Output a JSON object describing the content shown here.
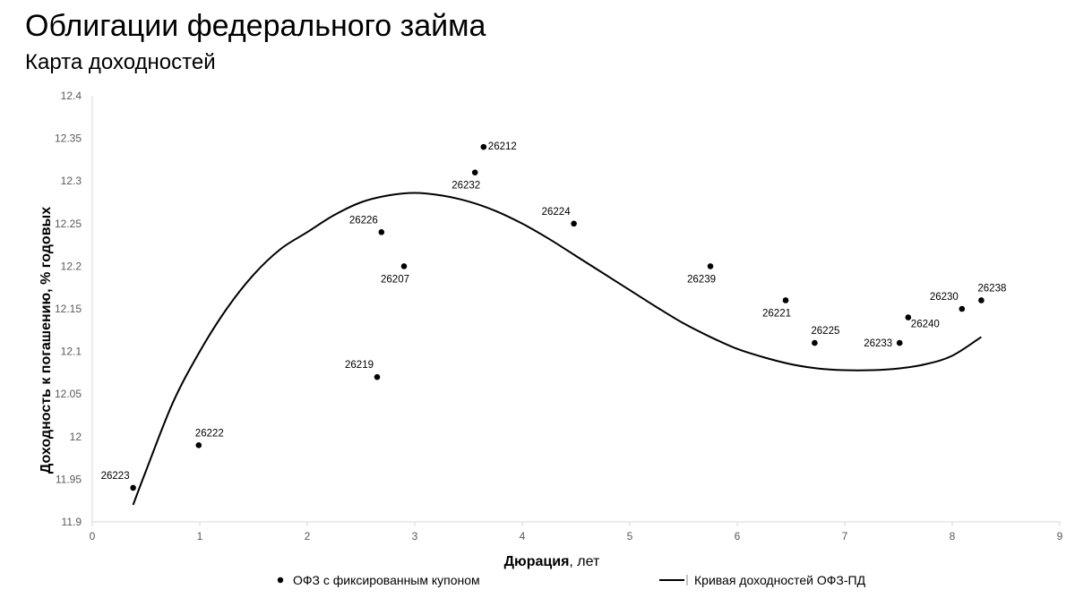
{
  "header": {
    "title": "Облигации федерального займа",
    "subtitle": "Карта доходностей"
  },
  "chart_data": {
    "type": "scatter",
    "xlabel_bold": "Дюрация",
    "xlabel_rest": ", лет",
    "ylabel": "Доходность к погашению, % годовых",
    "xlim": [
      0,
      9
    ],
    "ylim": [
      11.9,
      12.4
    ],
    "xticks": [
      "0",
      "1",
      "2",
      "3",
      "4",
      "5",
      "6",
      "7",
      "8",
      "9"
    ],
    "yticks": [
      "11.9",
      "11.95",
      "12",
      "12.05",
      "12.1",
      "12.15",
      "12.2",
      "12.25",
      "12.3",
      "12.35",
      "12.4"
    ],
    "grid": false,
    "legend_position": "bottom",
    "series": [
      {
        "name": "ОФЗ с фиксированным купоном",
        "kind": "scatter",
        "color": "#000000",
        "points": [
          {
            "label": "26223",
            "x": 0.38,
            "y": 11.94,
            "label_pos": "above-left"
          },
          {
            "label": "26222",
            "x": 0.99,
            "y": 11.99,
            "label_pos": "above-right"
          },
          {
            "label": "26219",
            "x": 2.65,
            "y": 12.07,
            "label_pos": "above-left"
          },
          {
            "label": "26226",
            "x": 2.69,
            "y": 12.24,
            "label_pos": "above-left"
          },
          {
            "label": "26207",
            "x": 2.9,
            "y": 12.2,
            "label_pos": "below-left"
          },
          {
            "label": "26232",
            "x": 3.56,
            "y": 12.31,
            "label_pos": "below-left"
          },
          {
            "label": "26212",
            "x": 3.64,
            "y": 12.34,
            "label_pos": "right"
          },
          {
            "label": "26224",
            "x": 4.48,
            "y": 12.25,
            "label_pos": "above-left"
          },
          {
            "label": "26239",
            "x": 5.75,
            "y": 12.2,
            "label_pos": "below-left"
          },
          {
            "label": "26221",
            "x": 6.45,
            "y": 12.16,
            "label_pos": "below-left"
          },
          {
            "label": "26225",
            "x": 6.72,
            "y": 12.11,
            "label_pos": "above-right"
          },
          {
            "label": "26233",
            "x": 7.51,
            "y": 12.11,
            "label_pos": "left"
          },
          {
            "label": "26240",
            "x": 7.59,
            "y": 12.14,
            "label_pos": "below-right"
          },
          {
            "label": "26230",
            "x": 8.09,
            "y": 12.15,
            "label_pos": "above-left"
          },
          {
            "label": "26238",
            "x": 8.27,
            "y": 12.16,
            "label_pos": "above-right"
          }
        ]
      },
      {
        "name": "Кривая доходностей ОФЗ-ПД",
        "kind": "line",
        "color": "#000000",
        "x": [
          0.38,
          0.5,
          0.75,
          1.0,
          1.25,
          1.5,
          1.75,
          2.0,
          2.25,
          2.5,
          2.75,
          3.0,
          3.25,
          3.5,
          3.75,
          4.0,
          4.25,
          4.5,
          4.75,
          5.0,
          5.25,
          5.5,
          5.75,
          6.0,
          6.25,
          6.5,
          6.75,
          7.0,
          7.25,
          7.5,
          7.75,
          8.0,
          8.27
        ],
        "y": [
          11.92,
          11.96,
          12.04,
          12.1,
          12.15,
          12.19,
          12.22,
          12.24,
          12.26,
          12.275,
          12.283,
          12.286,
          12.283,
          12.276,
          12.265,
          12.25,
          12.232,
          12.212,
          12.192,
          12.172,
          12.152,
          12.133,
          12.117,
          12.103,
          12.093,
          12.085,
          12.08,
          12.078,
          12.078,
          12.08,
          12.085,
          12.095,
          12.117
        ]
      }
    ]
  }
}
